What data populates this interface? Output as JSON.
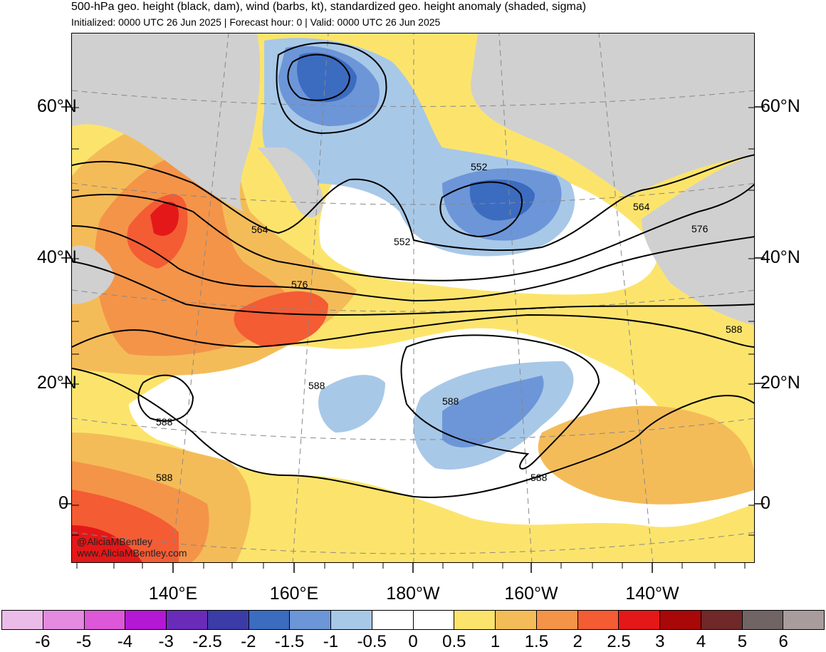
{
  "header": {
    "title": "500-hPa geo. height (black, dam), wind (barbs, kt), standardized geo. height anomaly (shaded, sigma)",
    "subtitle": "Initialized: 0000 UTC 26 Jun 2025 | Forecast hour: 0 | Valid: 0000 UTC 26 Jun 2025"
  },
  "map": {
    "lat_labels": [
      "60°N",
      "40°N",
      "20°N",
      "0"
    ],
    "lon_labels": [
      "140°E",
      "160°E",
      "180°W",
      "160°W",
      "140°W"
    ],
    "contour_labels": [
      "564",
      "552",
      "552",
      "564",
      "576",
      "576",
      "588",
      "588",
      "588",
      "588",
      "588",
      "588"
    ],
    "credit_handle": "@AliciaMBentley",
    "credit_site": "www.AliciaMBentley.com",
    "colors": {
      "land": "#d0d0d0",
      "neutral": "#ffffff"
    }
  },
  "colorbar": {
    "ticks": [
      "-6",
      "-5",
      "-4",
      "-3",
      "-2.5",
      "-2",
      "-1.5",
      "-1",
      "-0.5",
      "0",
      "0.5",
      "1",
      "1.5",
      "2",
      "2.5",
      "3",
      "4",
      "5",
      "6"
    ],
    "colors": [
      "#ecbce8",
      "#e48ae0",
      "#dc58d8",
      "#b418d4",
      "#6a2cb8",
      "#3c3ca8",
      "#3c6cc0",
      "#6c96d8",
      "#a8c8e8",
      "#ffffff",
      "#ffffff",
      "#fce46c",
      "#f4bc58",
      "#f49448",
      "#f45c34",
      "#e41818",
      "#a80808",
      "#702828",
      "#706464",
      "#a89c9c"
    ]
  }
}
